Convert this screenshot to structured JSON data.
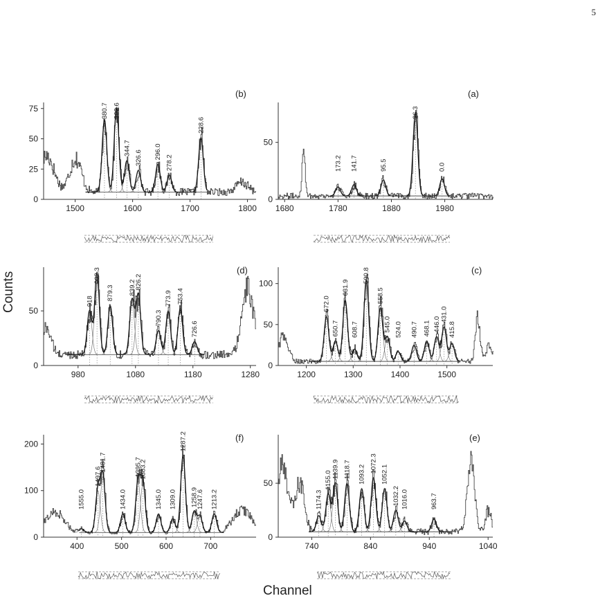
{
  "page_number": "5",
  "ylabel": "Counts",
  "xlabel": "Channel",
  "chart_data": [
    {
      "id": "panel-b",
      "type": "line",
      "panel_label": "(b)",
      "x_ticks": [
        1500,
        1600,
        1700,
        1800
      ],
      "y_ticks": [
        0,
        25,
        50,
        75
      ],
      "xlim": [
        1445,
        1815
      ],
      "ylim": [
        0,
        80
      ],
      "peaks": [
        {
          "label": "380.7",
          "x": 1551,
          "y": 60
        },
        {
          "label": "363.6",
          "x": 1572,
          "y": 70
        },
        {
          "label": "344.7",
          "x": 1590,
          "y": 26
        },
        {
          "label": "326.6",
          "x": 1610,
          "y": 18
        },
        {
          "label": "296.0",
          "x": 1644,
          "y": 23
        },
        {
          "label": "278.2",
          "x": 1664,
          "y": 14
        },
        {
          "label": "228.6",
          "x": 1719,
          "y": 45
        }
      ],
      "background": 6,
      "fit_range": [
        1518,
        1730
      ],
      "edge_features": [
        {
          "x": 1450,
          "y": 30,
          "w": 25
        },
        {
          "x": 1500,
          "y": 28,
          "w": 20
        },
        {
          "x": 1790,
          "y": 8,
          "w": 20
        }
      ]
    },
    {
      "id": "panel-a",
      "type": "line",
      "panel_label": "(a)",
      "x_ticks": [
        1680,
        1780,
        1880,
        1980
      ],
      "y_ticks": [
        0,
        50
      ],
      "xlim": [
        1668,
        2070
      ],
      "ylim": [
        0,
        85
      ],
      "peaks": [
        {
          "label": "173.2",
          "x": 1780,
          "y": 8
        },
        {
          "label": "141.7",
          "x": 1810,
          "y": 10
        },
        {
          "label": "95.5",
          "x": 1865,
          "y": 14
        },
        {
          "label": "36.3",
          "x": 1925,
          "y": 73
        },
        {
          "label": "0.0",
          "x": 1975,
          "y": 15
        }
      ],
      "background": 3,
      "fit_range": [
        1765,
        1990
      ],
      "edge_features": [
        {
          "x": 1715,
          "y": 40,
          "w": 6
        }
      ]
    },
    {
      "id": "panel-d",
      "type": "line",
      "panel_label": "(d)",
      "x_ticks": [
        980,
        1080,
        1180,
        1280
      ],
      "y_ticks": [
        0,
        50
      ],
      "xlim": [
        920,
        1290
      ],
      "ylim": [
        0,
        90
      ],
      "peaks": [
        {
          "label": "918",
          "x": 1000,
          "y": 40
        },
        {
          "label": "902.3",
          "x": 1013,
          "y": 75
        },
        {
          "label": "879.3",
          "x": 1036,
          "y": 45
        },
        {
          "label": "839.2",
          "x": 1074,
          "y": 50
        },
        {
          "label": "826.2",
          "x": 1085,
          "y": 55
        },
        {
          "label": "790.3",
          "x": 1120,
          "y": 22
        },
        {
          "label": "773.9",
          "x": 1137,
          "y": 40
        },
        {
          "label": "753.4",
          "x": 1158,
          "y": 42
        },
        {
          "label": "726.6",
          "x": 1183,
          "y": 12
        }
      ],
      "background": 10,
      "fit_range": [
        960,
        1200
      ],
      "edge_features": [
        {
          "x": 925,
          "y": 25,
          "w": 15
        },
        {
          "x": 1275,
          "y": 60,
          "w": 20
        }
      ]
    },
    {
      "id": "panel-c",
      "type": "line",
      "panel_label": "(c)",
      "x_ticks": [
        1200,
        1300,
        1400,
        1500
      ],
      "y_ticks": [
        0,
        50,
        100
      ],
      "xlim": [
        1140,
        1598
      ],
      "ylim": [
        0,
        120
      ],
      "peaks": [
        {
          "label": "672.0",
          "x": 1243,
          "y": 55
        },
        {
          "label": "650.7",
          "x": 1262,
          "y": 25
        },
        {
          "label": "631.9",
          "x": 1283,
          "y": 75
        },
        {
          "label": "608.7",
          "x": 1303,
          "y": 15
        },
        {
          "label": "590.8",
          "x": 1328,
          "y": 100
        },
        {
          "label": "558.5",
          "x": 1358,
          "y": 65
        },
        {
          "label": "545.0",
          "x": 1373,
          "y": 30
        },
        {
          "label": "524.0",
          "x": 1396,
          "y": 12
        },
        {
          "label": "490.7",
          "x": 1430,
          "y": 20
        },
        {
          "label": "468.1",
          "x": 1457,
          "y": 25
        },
        {
          "label": "446.0",
          "x": 1478,
          "y": 30
        },
        {
          "label": "431.0",
          "x": 1494,
          "y": 42
        },
        {
          "label": "415.8",
          "x": 1511,
          "y": 22
        }
      ],
      "background": 5,
      "fit_range": [
        1205,
        1525
      ],
      "edge_features": [
        {
          "x": 1150,
          "y": 30,
          "w": 20
        },
        {
          "x": 1565,
          "y": 55,
          "w": 10
        },
        {
          "x": 1590,
          "y": 20,
          "w": 15
        }
      ]
    },
    {
      "id": "panel-f",
      "type": "line",
      "panel_label": "(f)",
      "x_ticks": [
        400,
        500,
        600,
        700
      ],
      "y_ticks": [
        0,
        100,
        200
      ],
      "xlim": [
        325,
        802
      ],
      "ylim": [
        0,
        220
      ],
      "peaks": [
        {
          "label": "1555.0",
          "x": 410,
          "y": 8
        },
        {
          "label": "1497.6",
          "x": 447,
          "y": 90
        },
        {
          "label": "1481.7",
          "x": 458,
          "y": 120
        },
        {
          "label": "1434.0",
          "x": 503,
          "y": 40
        },
        {
          "label": "1395.7",
          "x": 537,
          "y": 110
        },
        {
          "label": "1383.2",
          "x": 548,
          "y": 105
        },
        {
          "label": "1345.0",
          "x": 583,
          "y": 40
        },
        {
          "label": "1309.0",
          "x": 615,
          "y": 30
        },
        {
          "label": "1287.2",
          "x": 638,
          "y": 165
        },
        {
          "label": "1258.9",
          "x": 663,
          "y": 45
        },
        {
          "label": "1247.6",
          "x": 676,
          "y": 35
        },
        {
          "label": "1213.2",
          "x": 708,
          "y": 40
        }
      ],
      "background": 10,
      "fit_range": [
        405,
        730
      ],
      "edge_features": [
        {
          "x": 350,
          "y": 45,
          "w": 40
        },
        {
          "x": 770,
          "y": 50,
          "w": 40
        }
      ]
    },
    {
      "id": "panel-e",
      "type": "line",
      "panel_label": "(e)",
      "x_ticks": [
        740,
        840,
        940,
        1040
      ],
      "y_ticks": [
        0,
        50
      ],
      "xlim": [
        683,
        1048
      ],
      "ylim": [
        0,
        95
      ],
      "peaks": [
        {
          "label": "1174.3",
          "x": 752,
          "y": 15
        },
        {
          "label": "1155.0",
          "x": 768,
          "y": 35
        },
        {
          "label": "1139.9",
          "x": 780,
          "y": 45
        },
        {
          "label": "1118.7",
          "x": 800,
          "y": 45
        },
        {
          "label": "1093.2",
          "x": 825,
          "y": 40
        },
        {
          "label": "1072.3",
          "x": 845,
          "y": 50
        },
        {
          "label": "1052.1",
          "x": 864,
          "y": 40
        },
        {
          "label": "1032.2",
          "x": 883,
          "y": 20
        },
        {
          "label": "1016.0",
          "x": 898,
          "y": 10
        },
        {
          "label": "963.7",
          "x": 948,
          "y": 12
        }
      ],
      "background": 5,
      "fit_range": [
        735,
        975
      ],
      "edge_features": [
        {
          "x": 690,
          "y": 60,
          "w": 20
        },
        {
          "x": 720,
          "y": 45,
          "w": 15
        },
        {
          "x": 1010,
          "y": 70,
          "w": 12
        },
        {
          "x": 1040,
          "y": 20,
          "w": 10
        }
      ]
    }
  ]
}
